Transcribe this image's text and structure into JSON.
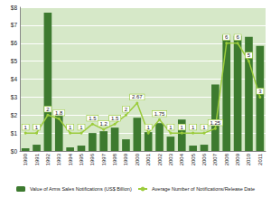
{
  "chart_data": {
    "type": "bar",
    "categories": [
      "1990",
      "1991",
      "1992",
      "1993",
      "1994",
      "1995",
      "1996",
      "1997",
      "1998",
      "1999",
      "2000",
      "2001",
      "2002",
      "2003",
      "2004",
      "2005",
      "2006",
      "2007",
      "2008",
      "2009",
      "2010",
      "2011"
    ],
    "series": [
      {
        "name": "Value of Arms Sales Notifications (US$ Billion)",
        "type": "bar",
        "color": "#3d7a2f",
        "values": [
          0.15,
          0.35,
          7.7,
          2.15,
          0.2,
          0.3,
          1.0,
          1.1,
          1.3,
          0.65,
          1.85,
          1.05,
          1.55,
          0.8,
          1.75,
          0.3,
          0.35,
          3.7,
          6.45,
          6.4,
          6.35,
          5.85
        ]
      },
      {
        "name": "Average Number of Notifications/Release Date",
        "type": "line",
        "color": "#9ccc3c",
        "marker": "circle",
        "line_style": "solid",
        "data_labels": true,
        "values": [
          1,
          1,
          2,
          1.8,
          1,
          1,
          1.5,
          1.2,
          1.5,
          2,
          2.67,
          1,
          1.75,
          1,
          1,
          1,
          1,
          1.25,
          6,
          6,
          5,
          3
        ]
      }
    ],
    "ylim": [
      0,
      8
    ],
    "yticks": [
      {
        "value": 0,
        "label": "$0"
      },
      {
        "value": 1,
        "label": "$1"
      },
      {
        "value": 2,
        "label": "$2"
      },
      {
        "value": 3,
        "label": "$3"
      },
      {
        "value": 4,
        "label": "$4"
      },
      {
        "value": 5,
        "label": "$5"
      },
      {
        "value": 6,
        "label": "$6"
      },
      {
        "value": 7,
        "label": "$7"
      },
      {
        "value": 8,
        "label": "$8"
      }
    ],
    "grid": true,
    "legend": "bottom"
  }
}
